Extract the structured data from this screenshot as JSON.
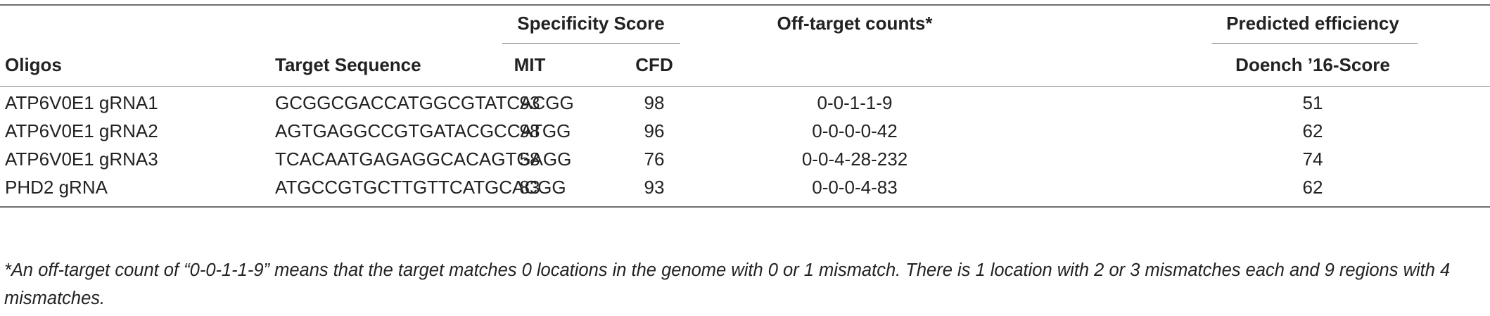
{
  "table": {
    "group_headers": {
      "specificity": "Specificity Score",
      "offtarget": "Off-target counts*",
      "efficiency": "Predicted efficiency"
    },
    "columns": {
      "oligos": "Oligos",
      "target": "Target Sequence",
      "mit": "MIT",
      "cfd": "CFD",
      "doench": "Doench ’16-Score"
    },
    "rows": [
      {
        "oligo": "ATP6V0E1 gRNA1",
        "sequence": "GCGGCGACCATGGCGTATCACGG",
        "mit": "93",
        "cfd": "98",
        "offtarget": "0-0-1-1-9",
        "doench": "51"
      },
      {
        "oligo": "ATP6V0E1 gRNA2",
        "sequence": "AGTGAGGCCGTGATACGCCATGG",
        "mit": "98",
        "cfd": "96",
        "offtarget": "0-0-0-0-42",
        "doench": "62"
      },
      {
        "oligo": "ATP6V0E1 gRNA3",
        "sequence": "TCACAATGAGAGGCACAGTGAGG",
        "mit": "58",
        "cfd": "76",
        "offtarget": "0-0-4-28-232",
        "doench": "74"
      },
      {
        "oligo": "PHD2 gRNA",
        "sequence": "ATGCCGTGCTTGTTCATGCACGG",
        "mit": "83",
        "cfd": "93",
        "offtarget": "0-0-0-4-83",
        "doench": "62"
      }
    ]
  },
  "footnote": "*An off-target count of “0-0-1-1-9” means that the target matches 0 locations in the genome with 0 or 1 mismatch. There is 1 location with 2 or 3 mismatches each and 9 regions with 4 mismatches."
}
